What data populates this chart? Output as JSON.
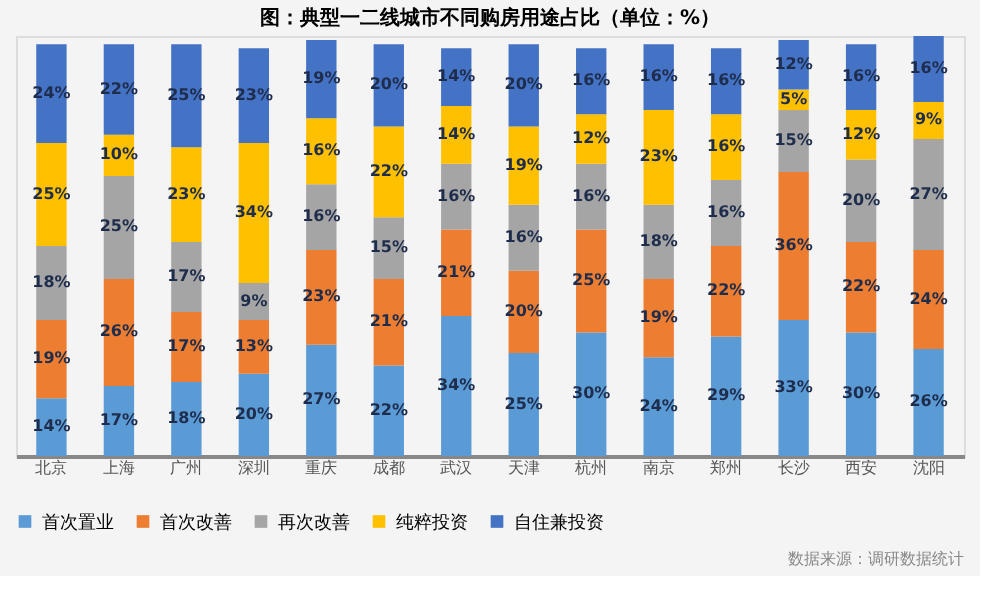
{
  "chart_data": {
    "type": "bar",
    "stacked": true,
    "legend": "bottom",
    "title": "图：典型一二线城市不同购房用途占比（单位：%）",
    "annotations": [
      "数据来源：调研数据统计"
    ],
    "categories": [
      "北京",
      "上海",
      "广州",
      "深圳",
      "重庆",
      "成都",
      "武汉",
      "天津",
      "杭州",
      "南京",
      "郑州",
      "长沙",
      "西安",
      "沈阳"
    ],
    "series": [
      {
        "name": "首次置业",
        "color": "#5b9bd5",
        "values": [
          14,
          17,
          18,
          20,
          27,
          22,
          34,
          25,
          30,
          24,
          29,
          33,
          30,
          26
        ],
        "value_labels": [
          "14%",
          "17%",
          "18%",
          "20%",
          "27%",
          "22%",
          "34%",
          "25%",
          "30%",
          "24%",
          "29%",
          "33%",
          "30%",
          "26%"
        ]
      },
      {
        "name": "首次改善",
        "color": "#ed7d31",
        "values": [
          19,
          26,
          17,
          13,
          23,
          21,
          21,
          20,
          25,
          19,
          22,
          36,
          22,
          24
        ],
        "value_labels": [
          "19%",
          "26%",
          "17%",
          "13%",
          "23%",
          "21%",
          "21%",
          "20%",
          "25%",
          "19%",
          "22%",
          "36%",
          "22%",
          "24%"
        ]
      },
      {
        "name": "再次改善",
        "color": "#a5a5a5",
        "values": [
          18,
          25,
          17,
          9,
          16,
          15,
          16,
          16,
          16,
          18,
          16,
          15,
          20,
          27
        ],
        "value_labels": [
          "18%",
          "25%",
          "17%",
          "9%",
          "16%",
          "15%",
          "16%",
          "16%",
          "16%",
          "18%",
          "16%",
          "15%",
          "20%",
          "27%"
        ]
      },
      {
        "name": "纯粹投资",
        "color": "#ffc000",
        "values": [
          25,
          10,
          23,
          34,
          16,
          22,
          14,
          19,
          12,
          23,
          16,
          5,
          12,
          9
        ],
        "value_labels": [
          "25%",
          "10%",
          "23%",
          "34%",
          "16%",
          "22%",
          "14%",
          "19%",
          "12%",
          "23%",
          "16%",
          "5%",
          "12%",
          "9%"
        ]
      },
      {
        "name": "自住兼投资",
        "color": "#4472c4",
        "values": [
          24,
          22,
          25,
          23,
          19,
          20,
          14,
          20,
          16,
          16,
          16,
          12,
          16,
          16
        ],
        "value_labels": [
          "24%",
          "22%",
          "25%",
          "23%",
          "19%",
          "20%",
          "14%",
          "20%",
          "16%",
          "16%",
          "16%",
          "12%",
          "16%",
          "16%"
        ]
      }
    ]
  }
}
